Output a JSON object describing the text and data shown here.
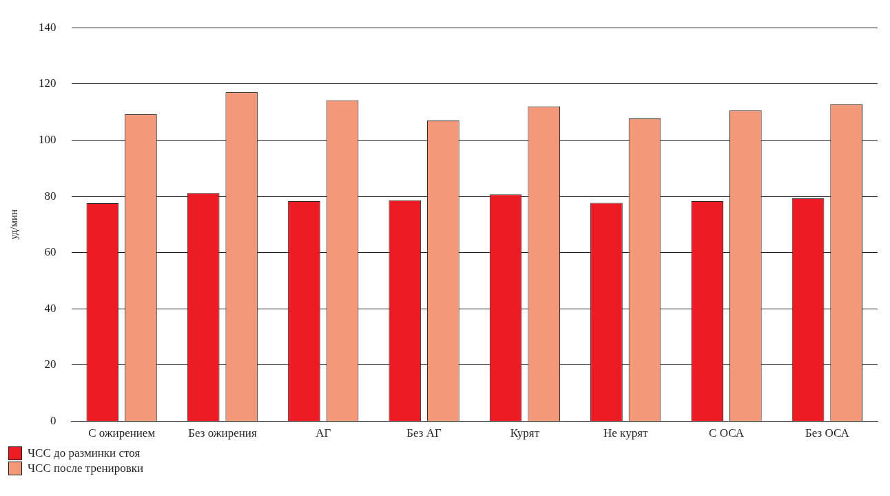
{
  "chart_data": {
    "type": "bar",
    "ylabel": "уд/мин",
    "categories": [
      "С ожирением",
      "Без ожирения",
      "АГ",
      "Без АГ",
      "Курят",
      "Не курят",
      "С ОСА",
      "Без ОСА"
    ],
    "series": [
      {
        "name": "ЧСС до разминки стоя",
        "color": "#ed1c24",
        "values": [
          77.6,
          81.2,
          78.3,
          78.6,
          80.7,
          77.7,
          78.3,
          79.3
        ]
      },
      {
        "name": "ЧСС после тренировки",
        "color": "#f4987a",
        "values": [
          109.2,
          117,
          114.2,
          107,
          112,
          107.7,
          110.6,
          112.8
        ]
      }
    ],
    "ylim": [
      0,
      140
    ],
    "yticks": [
      0,
      20,
      40,
      60,
      80,
      100,
      120,
      140
    ],
    "grid": "y",
    "legend": "bottom left"
  }
}
